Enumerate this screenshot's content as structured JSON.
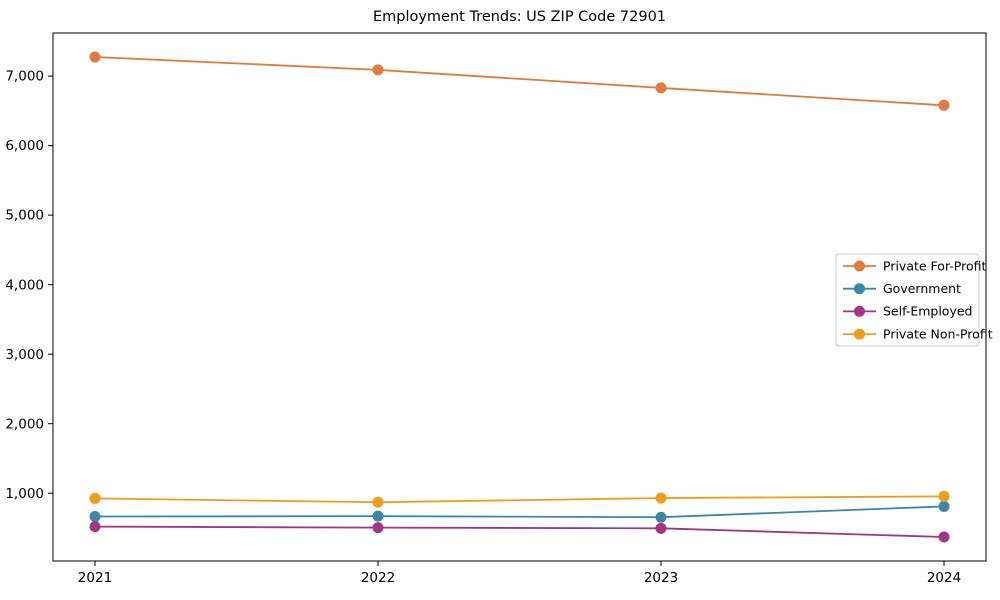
{
  "figure": {
    "title": "Employment Trends: US ZIP Code 72901"
  },
  "chart_data": {
    "type": "line",
    "title": "Employment Trends: US ZIP Code 72901",
    "categories": [
      "2021",
      "2022",
      "2023",
      "2024"
    ],
    "series": [
      {
        "name": "Private For-Profit",
        "color": "#e2793f",
        "values": [
          7275,
          7090,
          6830,
          6580
        ]
      },
      {
        "name": "Government",
        "color": "#3a87a8",
        "values": [
          665,
          670,
          655,
          810
        ]
      },
      {
        "name": "Self-Employed",
        "color": "#a23680",
        "values": [
          520,
          505,
          495,
          370
        ]
      },
      {
        "name": "Private Non-Profit",
        "color": "#f09d1c",
        "values": [
          925,
          870,
          930,
          955
        ]
      }
    ],
    "xlabel": "",
    "ylabel": "",
    "ylim": [
      25,
      7620
    ],
    "yticks": [
      1000,
      2000,
      3000,
      4000,
      5000,
      6000,
      7000
    ],
    "grid": false,
    "legend_position": "center right",
    "marker": "circle",
    "axis_color": "#000000",
    "legend_border_color": "#cccccc"
  }
}
